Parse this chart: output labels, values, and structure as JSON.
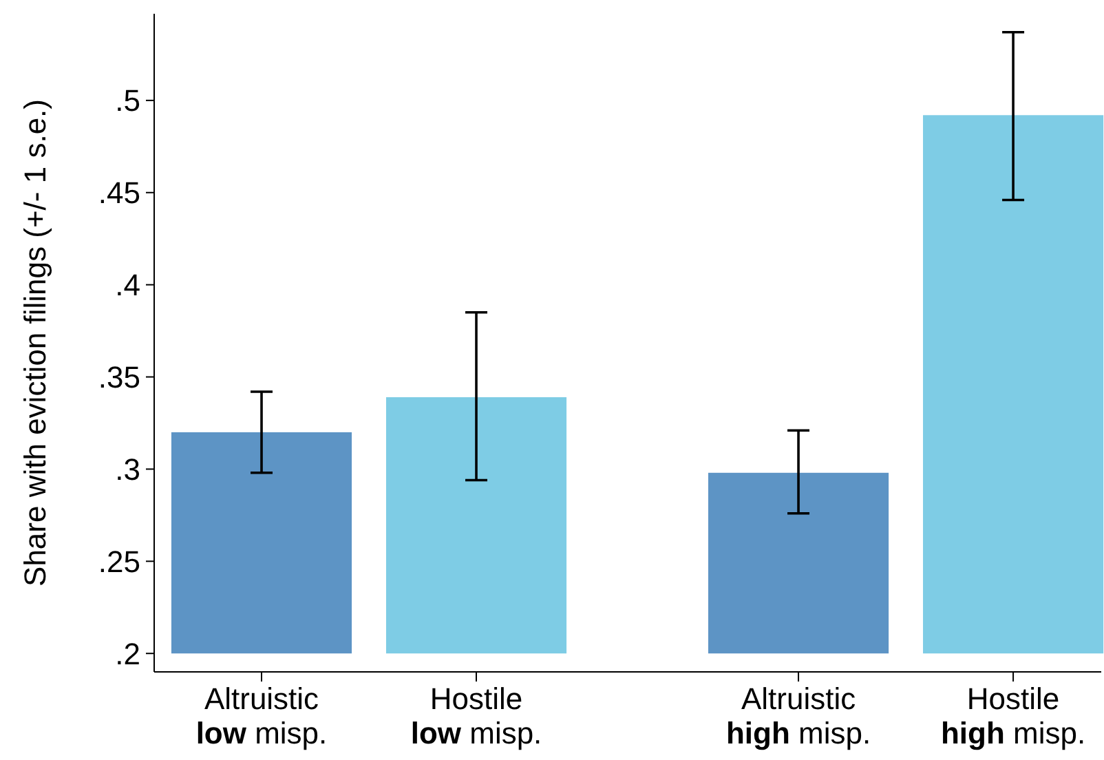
{
  "chart_data": {
    "type": "bar",
    "ylabel": "Share with eviction filings (+/- 1 s.e.)",
    "categories": [
      "Altruistic\nlow misp.",
      "Hostile\nlow misp.",
      "Altruistic\nhigh misp.",
      "Hostile\nhigh misp."
    ],
    "base": [
      0.2,
      0.2,
      0.2,
      0.2
    ],
    "values": [
      0.12,
      0.139,
      0.098,
      0.292
    ],
    "colors": [
      "#5d94c5",
      "#7ecce5",
      "#5d94c5",
      "#7ecce5"
    ],
    "errors": [
      [
        0.298,
        0.342
      ],
      [
        0.294,
        0.385
      ],
      [
        0.276,
        0.321
      ],
      [
        0.446,
        0.537
      ]
    ],
    "ylim": [
      0.19,
      0.547
    ],
    "yticks": [
      {
        "value": 0.2,
        "label": ".2"
      },
      {
        "value": 0.25,
        "label": ".25"
      },
      {
        "value": 0.3,
        "label": ".3"
      },
      {
        "value": 0.35,
        "label": ".35"
      },
      {
        "value": 0.4,
        "label": ".4"
      },
      {
        "value": 0.45,
        "label": ".45"
      },
      {
        "value": 0.5,
        "label": ".5"
      }
    ],
    "grid": false
  }
}
